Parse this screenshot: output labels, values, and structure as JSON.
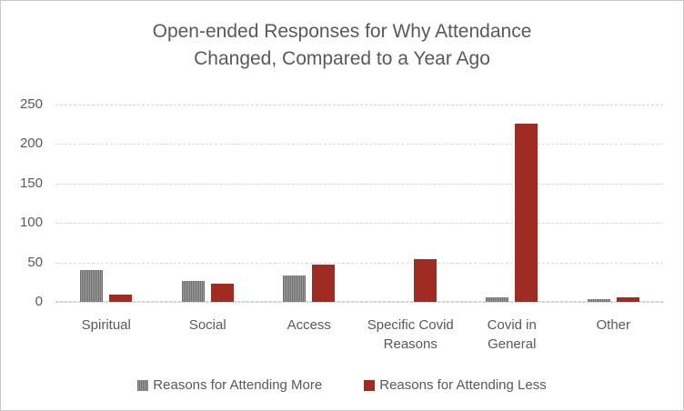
{
  "title_lines": [
    "Open-ended Responses for Why Attendance",
    "Changed, Compared to a Year Ago"
  ],
  "colors": {
    "series_more_gray": "#808080",
    "series_more_stripe_dark": "#6e6e6e",
    "series_more_stripe_light": "#9b9b9b",
    "series_less_red": "#A02B23",
    "text_gray": "#595959",
    "gridline_gray": "#d8d8d8",
    "frame_border_gray": "#c8c8c8"
  },
  "chart_data": {
    "type": "bar",
    "title": "Open-ended Responses for Why Attendance Changed, Compared to a Year Ago",
    "categories": [
      "Spiritual",
      "Social",
      "Access",
      "Specific Covid Reasons",
      "Covid in General",
      "Other"
    ],
    "series": [
      {
        "name": "Reasons for Attending More",
        "color": "#808080",
        "pattern": "thin-vertical-stripes",
        "values": [
          40,
          27,
          34,
          0,
          6,
          3
        ]
      },
      {
        "name": "Reasons for Attending Less",
        "color": "#A02B23",
        "pattern": "solid",
        "values": [
          9,
          23,
          47,
          54,
          226,
          6
        ]
      }
    ],
    "xlabel": "",
    "ylabel": "",
    "ylim": [
      0,
      250
    ],
    "yticks": [
      0,
      50,
      100,
      150,
      200,
      250
    ],
    "grid": "horizontal-dashed",
    "legend_position": "bottom"
  }
}
